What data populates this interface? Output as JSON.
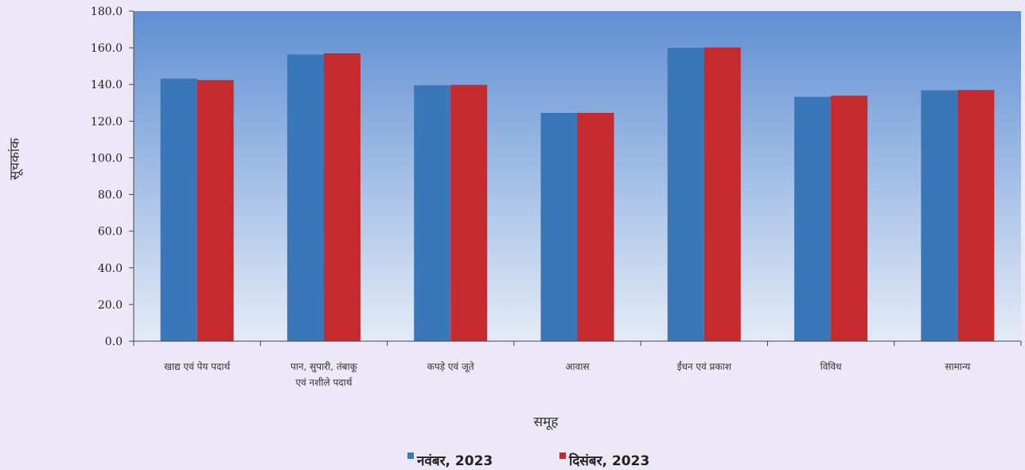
{
  "chart_data": {
    "type": "bar",
    "title": "",
    "xlabel": "समूह",
    "ylabel": "सूचकांक",
    "ylim": [
      0,
      180
    ],
    "yticks": [
      "0.0",
      "20.0",
      "40.0",
      "60.0",
      "80.0",
      "100.0",
      "120.0",
      "140.0",
      "160.0",
      "180.0"
    ],
    "categories": [
      [
        "खाद्य एवं पेय पदार्थ"
      ],
      [
        "पान, सुपारी, तंबाकू",
        "एवं नशीले पदार्थ"
      ],
      [
        "कपड़े एवं जूते"
      ],
      [
        "आवास"
      ],
      [
        "ईंधन एवं प्रकाश"
      ],
      [
        "विविध"
      ],
      [
        "सामान्य"
      ]
    ],
    "series": [
      {
        "name": "नवंबर, 2023",
        "color": "#3a77b8",
        "values": [
          143.2,
          156.3,
          139.6,
          124.5,
          160.0,
          133.3,
          136.8
        ]
      },
      {
        "name": "दिसंबर, 2023",
        "color": "#c42a2e",
        "values": [
          142.4,
          157.0,
          139.8,
          124.5,
          160.2,
          133.9,
          137.0
        ]
      }
    ],
    "grid": false,
    "legend_position": "bottom"
  }
}
